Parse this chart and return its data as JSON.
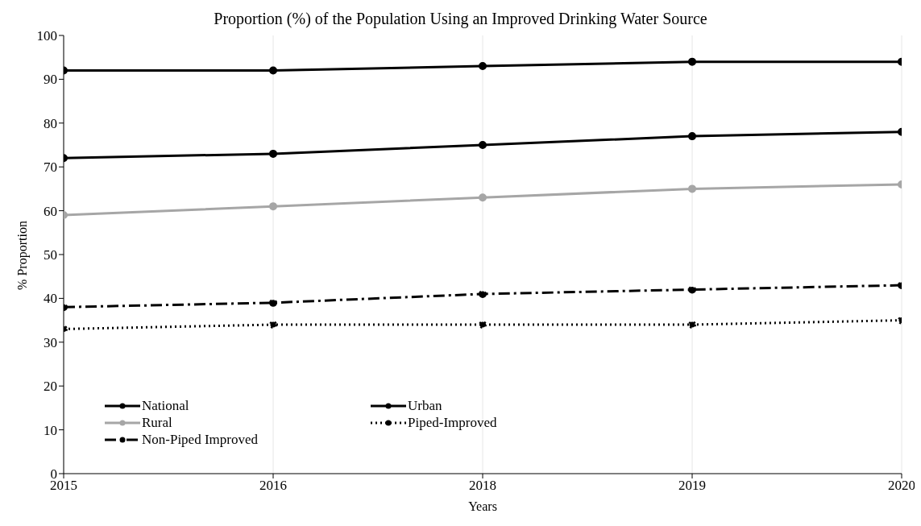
{
  "chart_data": {
    "type": "line",
    "title": "Proportion (%) of the Population Using an Improved Drinking Water Source",
    "xlabel": "Years",
    "ylabel": "% Proportion",
    "categories": [
      "2015",
      "2016",
      "2018",
      "2019",
      "2020"
    ],
    "series": [
      {
        "name": "National",
        "color": "#000000",
        "values": [
          72,
          73,
          75,
          77,
          78
        ],
        "line_style": "solid"
      },
      {
        "name": "Urban",
        "color": "#000000",
        "values": [
          92,
          92,
          93,
          94,
          94
        ],
        "line_style": "solid"
      },
      {
        "name": "Rural",
        "color": "#a6a6a6",
        "values": [
          59,
          61,
          63,
          65,
          66
        ],
        "line_style": "solid"
      },
      {
        "name": "Piped-Improved",
        "color": "#000000",
        "values": [
          33,
          34,
          34,
          34,
          35
        ],
        "line_style": "dotted"
      },
      {
        "name": "Non-Piped Improved",
        "color": "#000000",
        "values": [
          38,
          39,
          41,
          42,
          43
        ],
        "line_style": "dashed"
      }
    ],
    "ylim": [
      0,
      100
    ],
    "yticks": [
      0,
      10,
      20,
      30,
      40,
      50,
      60,
      70,
      80,
      90,
      100
    ],
    "grid": "x",
    "legend": "bottom left",
    "marker": "circle"
  }
}
